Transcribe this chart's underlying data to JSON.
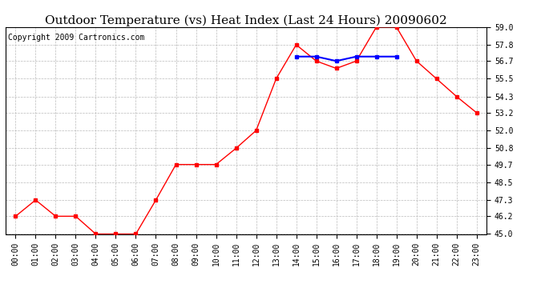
{
  "title": "Outdoor Temperature (vs) Heat Index (Last 24 Hours) 20090602",
  "copyright": "Copyright 2009 Cartronics.com",
  "hours": [
    "00:00",
    "01:00",
    "02:00",
    "03:00",
    "04:00",
    "05:00",
    "06:00",
    "07:00",
    "08:00",
    "09:00",
    "10:00",
    "11:00",
    "12:00",
    "13:00",
    "14:00",
    "15:00",
    "16:00",
    "17:00",
    "18:00",
    "19:00",
    "20:00",
    "21:00",
    "22:00",
    "23:00"
  ],
  "temp": [
    46.2,
    47.3,
    46.2,
    46.2,
    45.0,
    45.0,
    45.0,
    47.3,
    49.7,
    49.7,
    49.7,
    50.8,
    52.0,
    55.5,
    57.8,
    56.7,
    56.2,
    56.7,
    59.0,
    59.0,
    56.7,
    55.5,
    54.3,
    53.2
  ],
  "heat_index": [
    null,
    null,
    null,
    null,
    null,
    null,
    null,
    null,
    null,
    null,
    null,
    null,
    null,
    null,
    57.0,
    57.0,
    56.7,
    57.0,
    57.0,
    57.0,
    null,
    null,
    null,
    null
  ],
  "ylim": [
    45.0,
    59.0
  ],
  "yticks": [
    45.0,
    46.2,
    47.3,
    48.5,
    49.7,
    50.8,
    52.0,
    53.2,
    54.3,
    55.5,
    56.7,
    57.8,
    59.0
  ],
  "temp_color": "#ff0000",
  "heat_color": "#0000ff",
  "bg_color": "#ffffff",
  "plot_bg": "#ffffff",
  "grid_color": "#bbbbbb",
  "title_fontsize": 11,
  "copyright_fontsize": 7
}
